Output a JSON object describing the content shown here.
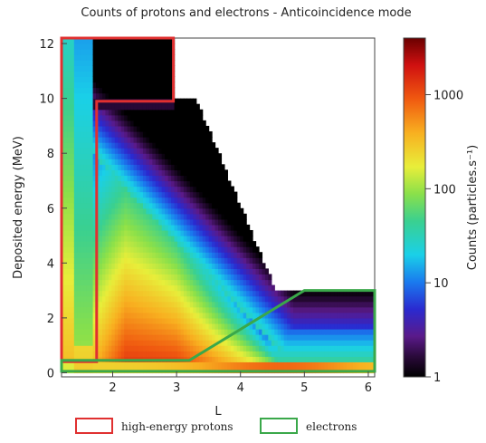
{
  "chart_data": {
    "type": "heatmap",
    "title": "Counts of protons and electrons - Anticoincidence mode",
    "xlabel": "L",
    "ylabel": "Deposited energy (MeV)",
    "colorbar_label": "Counts (particles.s⁻¹)",
    "x_ticks": [
      2,
      3,
      4,
      5,
      6
    ],
    "y_ticks": [
      0,
      2,
      4,
      6,
      8,
      10,
      12
    ],
    "colorbar_ticks": [
      1,
      10,
      100,
      1000
    ],
    "xlim": [
      1.2,
      6.1
    ],
    "ylim": [
      -0.15,
      12.2
    ],
    "colorbar_range": [
      1,
      4000
    ],
    "colorbar_scale": "log",
    "colormap": "rainbow (black-purple-blue-cyan-green-yellow-orange-red-darkred)",
    "regions": [
      {
        "name": "high-energy protons",
        "color": "#e03030",
        "polygon": [
          [
            1.2,
            0.4
          ],
          [
            1.2,
            12.2
          ],
          [
            2.95,
            12.2
          ],
          [
            2.95,
            9.9
          ],
          [
            1.75,
            9.9
          ],
          [
            1.75,
            0.4
          ]
        ]
      },
      {
        "name": "electrons",
        "color": "#3aa84a",
        "polygon": [
          [
            1.2,
            0.05
          ],
          [
            1.2,
            0.45
          ],
          [
            3.2,
            0.45
          ],
          [
            5.0,
            3.0
          ],
          [
            6.1,
            3.0
          ],
          [
            6.1,
            0.05
          ]
        ]
      }
    ]
  },
  "legend": {
    "protons_label": "high-energy protons",
    "protons_color": "#e03030",
    "electrons_label": "electrons",
    "electrons_color": "#3aa84a"
  }
}
